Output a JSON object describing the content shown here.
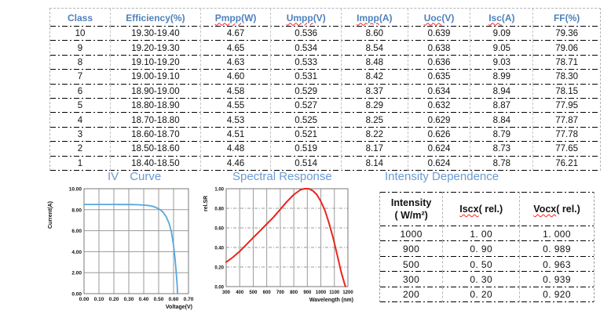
{
  "colors": {
    "header_blue": "#4f81bd",
    "title_blue": "#6b9bd2",
    "squiggle_red": "#ff1f1f",
    "iv_line_blue": "#57a7dc",
    "spectral_line_red": "#e8251d",
    "grid_gray": "#9a9a9a"
  },
  "spec_table": {
    "columns": [
      {
        "word": "Class",
        "rest": "",
        "squiggle": false
      },
      {
        "word": "Efficiency",
        "rest": " (%)",
        "squiggle": false
      },
      {
        "word": "Pmpp",
        "rest": " (W)",
        "squiggle": true
      },
      {
        "word": "Umpp",
        "rest": " (V)",
        "squiggle": true
      },
      {
        "word": "Impp",
        "rest": " (A)",
        "squiggle": true
      },
      {
        "word": "Uoc",
        "rest": " (V)",
        "squiggle": true
      },
      {
        "word": "Isc",
        "rest": " (A)",
        "squiggle": true
      },
      {
        "word": "FF",
        "rest": "(%)",
        "squiggle": false
      }
    ],
    "rows": [
      [
        "10",
        "19.30-19.40",
        "4.67",
        "0.536",
        "8.60",
        "0.639",
        "9.09",
        "79.36"
      ],
      [
        "9",
        "19.20-19.30",
        "4.65",
        "0.534",
        "8.54",
        "0.638",
        "9.05",
        "79.06"
      ],
      [
        "8",
        "19.10-19.20",
        "4.63",
        "0.533",
        "8.48",
        "0.636",
        "9.03",
        "78.71"
      ],
      [
        "7",
        "19.00-19.10",
        "4.60",
        "0.531",
        "8.42",
        "0.635",
        "8.99",
        "78.30"
      ],
      [
        "6",
        "18.90-19.00",
        "4.58",
        "0.529",
        "8.37",
        "0.634",
        "8.94",
        "78.15"
      ],
      [
        "5",
        "18.80-18.90",
        "4.55",
        "0.527",
        "8.29",
        "0.632",
        "8.87",
        "77.95"
      ],
      [
        "4",
        "18.70-18.80",
        "4.53",
        "0.525",
        "8.25",
        "0.629",
        "8.84",
        "77.87"
      ],
      [
        "3",
        "18.60-18.70",
        "4.51",
        "0.521",
        "8.22",
        "0.626",
        "8.79",
        "77.78"
      ],
      [
        "2",
        "18.50-18.60",
        "4.48",
        "0.519",
        "8.17",
        "0.624",
        "8.73",
        "77.65"
      ],
      [
        "1",
        "18.40-18.50",
        "4.46",
        "0.514",
        "8.14",
        "0.624",
        "8.78",
        "76.21"
      ]
    ]
  },
  "sections": {
    "iv_part1": "IV",
    "iv_part2": "Curve",
    "spectral": "Spectral Response",
    "intensity": "Intensity Dependence"
  },
  "chart_data": [
    {
      "id": "iv_curve",
      "type": "line",
      "title": "IV Curve",
      "xlabel": "Voltage(V)",
      "ylabel": "Current(A)",
      "xlim": [
        0,
        0.7
      ],
      "ylim": [
        0,
        10
      ],
      "xtick_values": [
        0,
        0.1,
        0.2,
        0.3,
        0.4,
        0.5,
        0.6,
        0.7
      ],
      "xtick_labels": [
        "0.00",
        "0.10",
        "0.20",
        "0.30",
        "0.40",
        "0.50",
        "0.60",
        "0.70"
      ],
      "ytick_values": [
        0,
        2,
        4,
        6,
        8,
        10
      ],
      "ytick_labels": [
        "0.00",
        "2.00",
        "4.00",
        "6.00",
        "8.00",
        "10.00"
      ],
      "grid_horizontal_style": "solid",
      "legend": "none",
      "line_color": "#57a7dc",
      "points": [
        [
          0,
          8.5
        ],
        [
          0.05,
          8.5
        ],
        [
          0.1,
          8.5
        ],
        [
          0.15,
          8.5
        ],
        [
          0.2,
          8.5
        ],
        [
          0.25,
          8.49
        ],
        [
          0.3,
          8.49
        ],
        [
          0.35,
          8.48
        ],
        [
          0.4,
          8.44
        ],
        [
          0.44,
          8.38
        ],
        [
          0.47,
          8.28
        ],
        [
          0.49,
          8.15
        ],
        [
          0.51,
          8.0
        ],
        [
          0.53,
          7.75
        ],
        [
          0.55,
          7.35
        ],
        [
          0.57,
          6.7
        ],
        [
          0.585,
          5.9
        ],
        [
          0.6,
          4.6
        ],
        [
          0.61,
          3.3
        ],
        [
          0.618,
          2.0
        ],
        [
          0.624,
          0.8
        ],
        [
          0.627,
          0
        ]
      ]
    },
    {
      "id": "spectral_response",
      "type": "line",
      "title": "Spectral Response",
      "xlabel": "Wavelength (nm)",
      "ylabel": "rel.SR",
      "xlim": [
        300,
        1200
      ],
      "ylim": [
        0,
        1
      ],
      "xtick_values": [
        300,
        400,
        500,
        600,
        700,
        800,
        900,
        1000,
        1100,
        1200
      ],
      "xtick_labels": [
        "300",
        "400",
        "500",
        "600",
        "700",
        "800",
        "900",
        "1000",
        "1100",
        "1200"
      ],
      "ytick_values": [
        0,
        0.2,
        0.4,
        0.6,
        0.8,
        1.0
      ],
      "ytick_labels": [
        "0.00",
        "0.20",
        "0.40",
        "0.60",
        "0.80",
        "1.00"
      ],
      "grid_horizontal_style": "dashdot",
      "legend": "none",
      "line_color": "#e8251d",
      "points": [
        [
          300,
          0.25
        ],
        [
          350,
          0.3
        ],
        [
          400,
          0.36
        ],
        [
          450,
          0.43
        ],
        [
          500,
          0.5
        ],
        [
          550,
          0.57
        ],
        [
          600,
          0.64
        ],
        [
          650,
          0.71
        ],
        [
          700,
          0.79
        ],
        [
          750,
          0.87
        ],
        [
          800,
          0.94
        ],
        [
          850,
          0.99
        ],
        [
          880,
          1.0
        ],
        [
          910,
          1.0
        ],
        [
          940,
          0.98
        ],
        [
          970,
          0.94
        ],
        [
          1000,
          0.87
        ],
        [
          1030,
          0.78
        ],
        [
          1060,
          0.65
        ],
        [
          1090,
          0.5
        ],
        [
          1120,
          0.33
        ],
        [
          1150,
          0.15
        ],
        [
          1175,
          0.03
        ],
        [
          1182,
          0.0
        ]
      ]
    }
  ],
  "intensity_table": {
    "header": {
      "col1_line1": "Intensity",
      "col1_line2": "( W/m²)",
      "col2_word": "Iscx",
      "col2_rest": "( rel.)",
      "col3_word": "Vocx",
      "col3_rest": "( rel.)"
    },
    "rows": [
      [
        "1000",
        "1. 00",
        "1. 000"
      ],
      [
        "900",
        "0. 90",
        "0. 989"
      ],
      [
        "500",
        "0. 50",
        "0. 963"
      ],
      [
        "300",
        "0. 30",
        "0. 939"
      ],
      [
        "200",
        "0. 20",
        "0. 920"
      ]
    ]
  }
}
